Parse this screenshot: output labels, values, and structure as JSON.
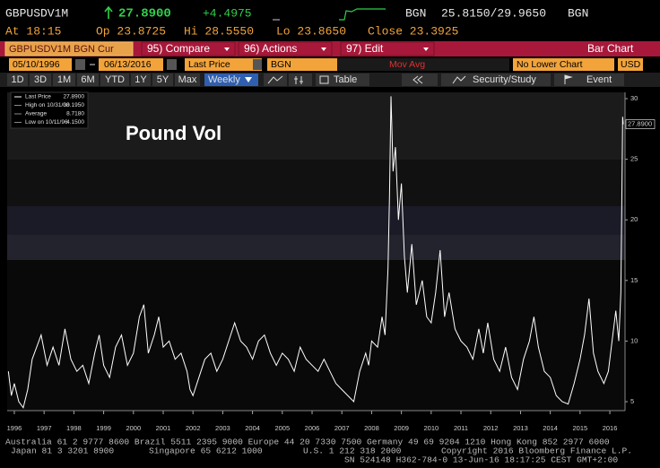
{
  "quote": {
    "ticker": "GBPUSDV1M",
    "last": "27.8900",
    "change": "+4.4975",
    "source": "BGN",
    "bid_ask": "25.8150/29.9650",
    "source2": "BGN",
    "time": "At 18:15",
    "open": "Op 23.8725",
    "high": "Hi 28.5550",
    "low": "Lo 23.8650",
    "close": "Close 23.3925"
  },
  "menu": {
    "security": "GBPUSDV1M BGN Cur",
    "items": [
      "95) Compare",
      "96) Actions",
      "97) Edit"
    ],
    "chart_type": "Bar Chart"
  },
  "fields": {
    "start": "05/10/1996",
    "end": "06/13/2016",
    "field": "Last Price",
    "source": "BGN",
    "study": "Mov Avg",
    "lower": "No Lower Chart",
    "currency": "USD"
  },
  "toolbar": {
    "periods": [
      "1D",
      "3D",
      "1M",
      "6M",
      "YTD",
      "1Y",
      "5Y",
      "Max"
    ],
    "frequency": "Weekly",
    "table": "Table",
    "study": "Security/Study",
    "event": "Event"
  },
  "chart_data": {
    "type": "line",
    "title": "Pound Vol",
    "stats": [
      {
        "label": "Last Price",
        "value": "27.8900"
      },
      {
        "label": "High on 10/31/08",
        "value": "30.1950"
      },
      {
        "label": "Average",
        "value": "8.7180"
      },
      {
        "label": "Low on 10/11/96",
        "value": "4.1500"
      }
    ],
    "series": [
      {
        "name": "Last Price",
        "color": "#ffffff",
        "x": [
          1995.8,
          1995.9,
          1996.0,
          1996.15,
          1996.3,
          1996.45,
          1996.6,
          1996.75,
          1996.9,
          1997.1,
          1997.3,
          1997.5,
          1997.7,
          1997.9,
          1998.1,
          1998.3,
          1998.5,
          1998.7,
          1998.85,
          1999.0,
          1999.2,
          1999.4,
          1999.6,
          1999.8,
          2000.0,
          2000.2,
          2000.35,
          2000.5,
          2000.7,
          2000.85,
          2001.0,
          2001.2,
          2001.4,
          2001.6,
          2001.8,
          2001.9,
          2002.0,
          2002.2,
          2002.4,
          2002.6,
          2002.8,
          2003.0,
          2003.2,
          2003.4,
          2003.6,
          2003.8,
          2004.0,
          2004.2,
          2004.4,
          2004.6,
          2004.8,
          2005.0,
          2005.2,
          2005.4,
          2005.6,
          2005.8,
          2006.0,
          2006.2,
          2006.4,
          2006.6,
          2006.8,
          2007.0,
          2007.2,
          2007.4,
          2007.6,
          2007.8,
          2007.9,
          2008.0,
          2008.2,
          2008.35,
          2008.45,
          2008.55,
          2008.6,
          2008.65,
          2008.72,
          2008.8,
          2008.9,
          2009.0,
          2009.1,
          2009.2,
          2009.35,
          2009.5,
          2009.7,
          2009.85,
          2010.0,
          2010.15,
          2010.3,
          2010.45,
          2010.6,
          2010.8,
          2011.0,
          2011.2,
          2011.4,
          2011.6,
          2011.75,
          2011.9,
          2012.1,
          2012.3,
          2012.5,
          2012.7,
          2012.9,
          2013.1,
          2013.3,
          2013.45,
          2013.6,
          2013.8,
          2014.0,
          2014.2,
          2014.4,
          2014.6,
          2014.8,
          2015.0,
          2015.15,
          2015.3,
          2015.45,
          2015.6,
          2015.8,
          2015.95,
          2016.1,
          2016.2,
          2016.3,
          2016.37,
          2016.4,
          2016.43,
          2016.45
        ],
        "values": [
          7.5,
          5.5,
          6.5,
          5,
          4.5,
          6,
          8.5,
          9.5,
          10.5,
          8,
          9.5,
          8,
          11,
          8.5,
          7.5,
          8,
          6.5,
          9,
          10.5,
          8,
          7,
          9.5,
          10.5,
          8,
          9,
          12,
          13,
          9,
          10.5,
          12,
          9.5,
          10,
          8.5,
          9,
          7.5,
          6,
          5.5,
          7,
          8.5,
          9,
          7.5,
          8.5,
          10,
          11.5,
          10,
          9.5,
          8.5,
          10,
          10.5,
          9,
          8,
          9,
          8.5,
          7.5,
          9.5,
          8.5,
          8,
          7.5,
          8.5,
          7.5,
          6.5,
          6,
          5.5,
          5,
          7.5,
          9,
          8,
          10,
          9.5,
          12,
          10.5,
          16,
          22,
          30.195,
          24,
          26,
          20,
          23,
          17,
          14,
          18,
          13,
          15,
          12,
          11.5,
          14,
          17.5,
          12,
          14,
          11,
          10,
          9.5,
          8.5,
          11,
          9,
          11.5,
          8.5,
          7.5,
          9.5,
          7,
          6,
          8.5,
          10,
          12,
          9.5,
          7.5,
          7,
          5.5,
          5,
          4.8,
          6.5,
          8.5,
          10.5,
          13.5,
          9,
          7.5,
          6.5,
          7.5,
          10.5,
          12.5,
          10,
          14,
          21,
          28.5,
          27.89
        ]
      }
    ],
    "xlim": [
      1995.76,
      2016.51
    ],
    "xticks": [
      1996,
      1997,
      1998,
      1999,
      2000,
      2001,
      2002,
      2003,
      2004,
      2005,
      2006,
      2007,
      2008,
      2009,
      2010,
      2011,
      2012,
      2013,
      2014,
      2015,
      2016
    ],
    "ylim": [
      4.26,
      30.52
    ],
    "yticks": [
      5,
      10,
      15,
      20,
      25,
      30
    ],
    "y_axis_side": "right",
    "grid": false
  },
  "footer": {
    "line1": "Australia 61 2 9777 8600 Brazil 5511 2395 9000 Europe 44 20 7330 7500 Germany 49 69 9204 1210 Hong Kong 852 2977 6000",
    "line2": [
      "Japan 81 3 3201 8900",
      "Singapore 65 6212 1000",
      "U.S. 1 212 318 2000",
      "Copyright 2016 Bloomberg Finance L.P."
    ],
    "line3": "SN 524148 H362-784-0 13-Jun-16 18:17:25 CEST GMT+2:00"
  }
}
